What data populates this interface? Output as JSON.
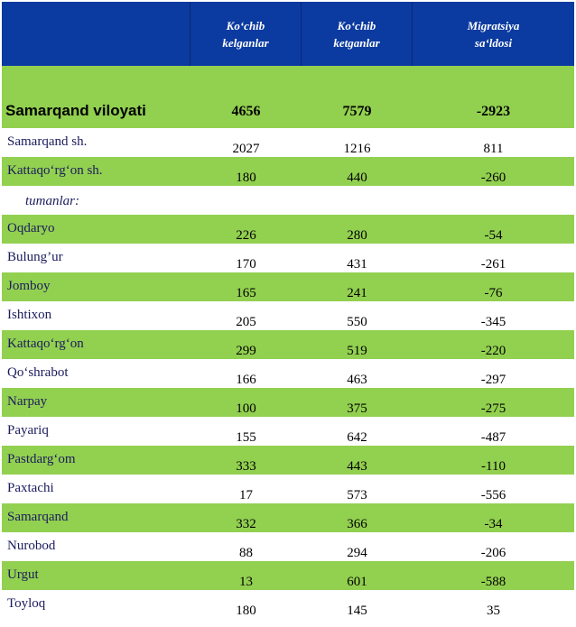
{
  "header": {
    "col0": "",
    "col1": "Ko‘chib\nkelganlar",
    "col2": "Ko‘chib\nketganlar",
    "col3": "Migratsiya\nsa‘ldosi"
  },
  "total": {
    "name": "Samarqand viloyati",
    "in": "4656",
    "out": "7579",
    "net": "-2923"
  },
  "cities": [
    {
      "name": "Samarqand sh.",
      "in": "2027",
      "out": "1216",
      "net": "811"
    },
    {
      "name": "Kattaqo‘rg‘on sh.",
      "in": "180",
      "out": "440",
      "net": "-260"
    }
  ],
  "subheader": "tumanlar:",
  "districts": [
    {
      "name": "Oqdaryo",
      "in": "226",
      "out": "280",
      "net": "-54"
    },
    {
      "name": "Bulung’ur",
      "in": "170",
      "out": "431",
      "net": "-261"
    },
    {
      "name": "Jomboy",
      "in": "165",
      "out": "241",
      "net": "-76"
    },
    {
      "name": "Ishtixon",
      "in": "205",
      "out": "550",
      "net": "-345"
    },
    {
      "name": "Kattaqo‘rg‘on",
      "in": "299",
      "out": "519",
      "net": "-220"
    },
    {
      "name": "Qo‘shrabot",
      "in": "166",
      "out": "463",
      "net": "-297"
    },
    {
      "name": "Narpay",
      "in": "100",
      "out": "375",
      "net": "-275"
    },
    {
      "name": "Payariq",
      "in": "155",
      "out": "642",
      "net": "-487"
    },
    {
      "name": "Pastdarg‘om",
      "in": "333",
      "out": "443",
      "net": "-110"
    },
    {
      "name": "Paxtachi",
      "in": "17",
      "out": "573",
      "net": "-556"
    },
    {
      "name": "Samarqand",
      "in": "332",
      "out": "366",
      "net": "-34"
    },
    {
      "name": "Nurobod",
      "in": "88",
      "out": "294",
      "net": "-206"
    },
    {
      "name": "Urgut",
      "in": "13",
      "out": "601",
      "net": "-588"
    },
    {
      "name": "Toyloq",
      "in": "180",
      "out": "145",
      "net": "35"
    }
  ],
  "colors": {
    "header": "#0b3aa0",
    "green": "#92d050"
  }
}
